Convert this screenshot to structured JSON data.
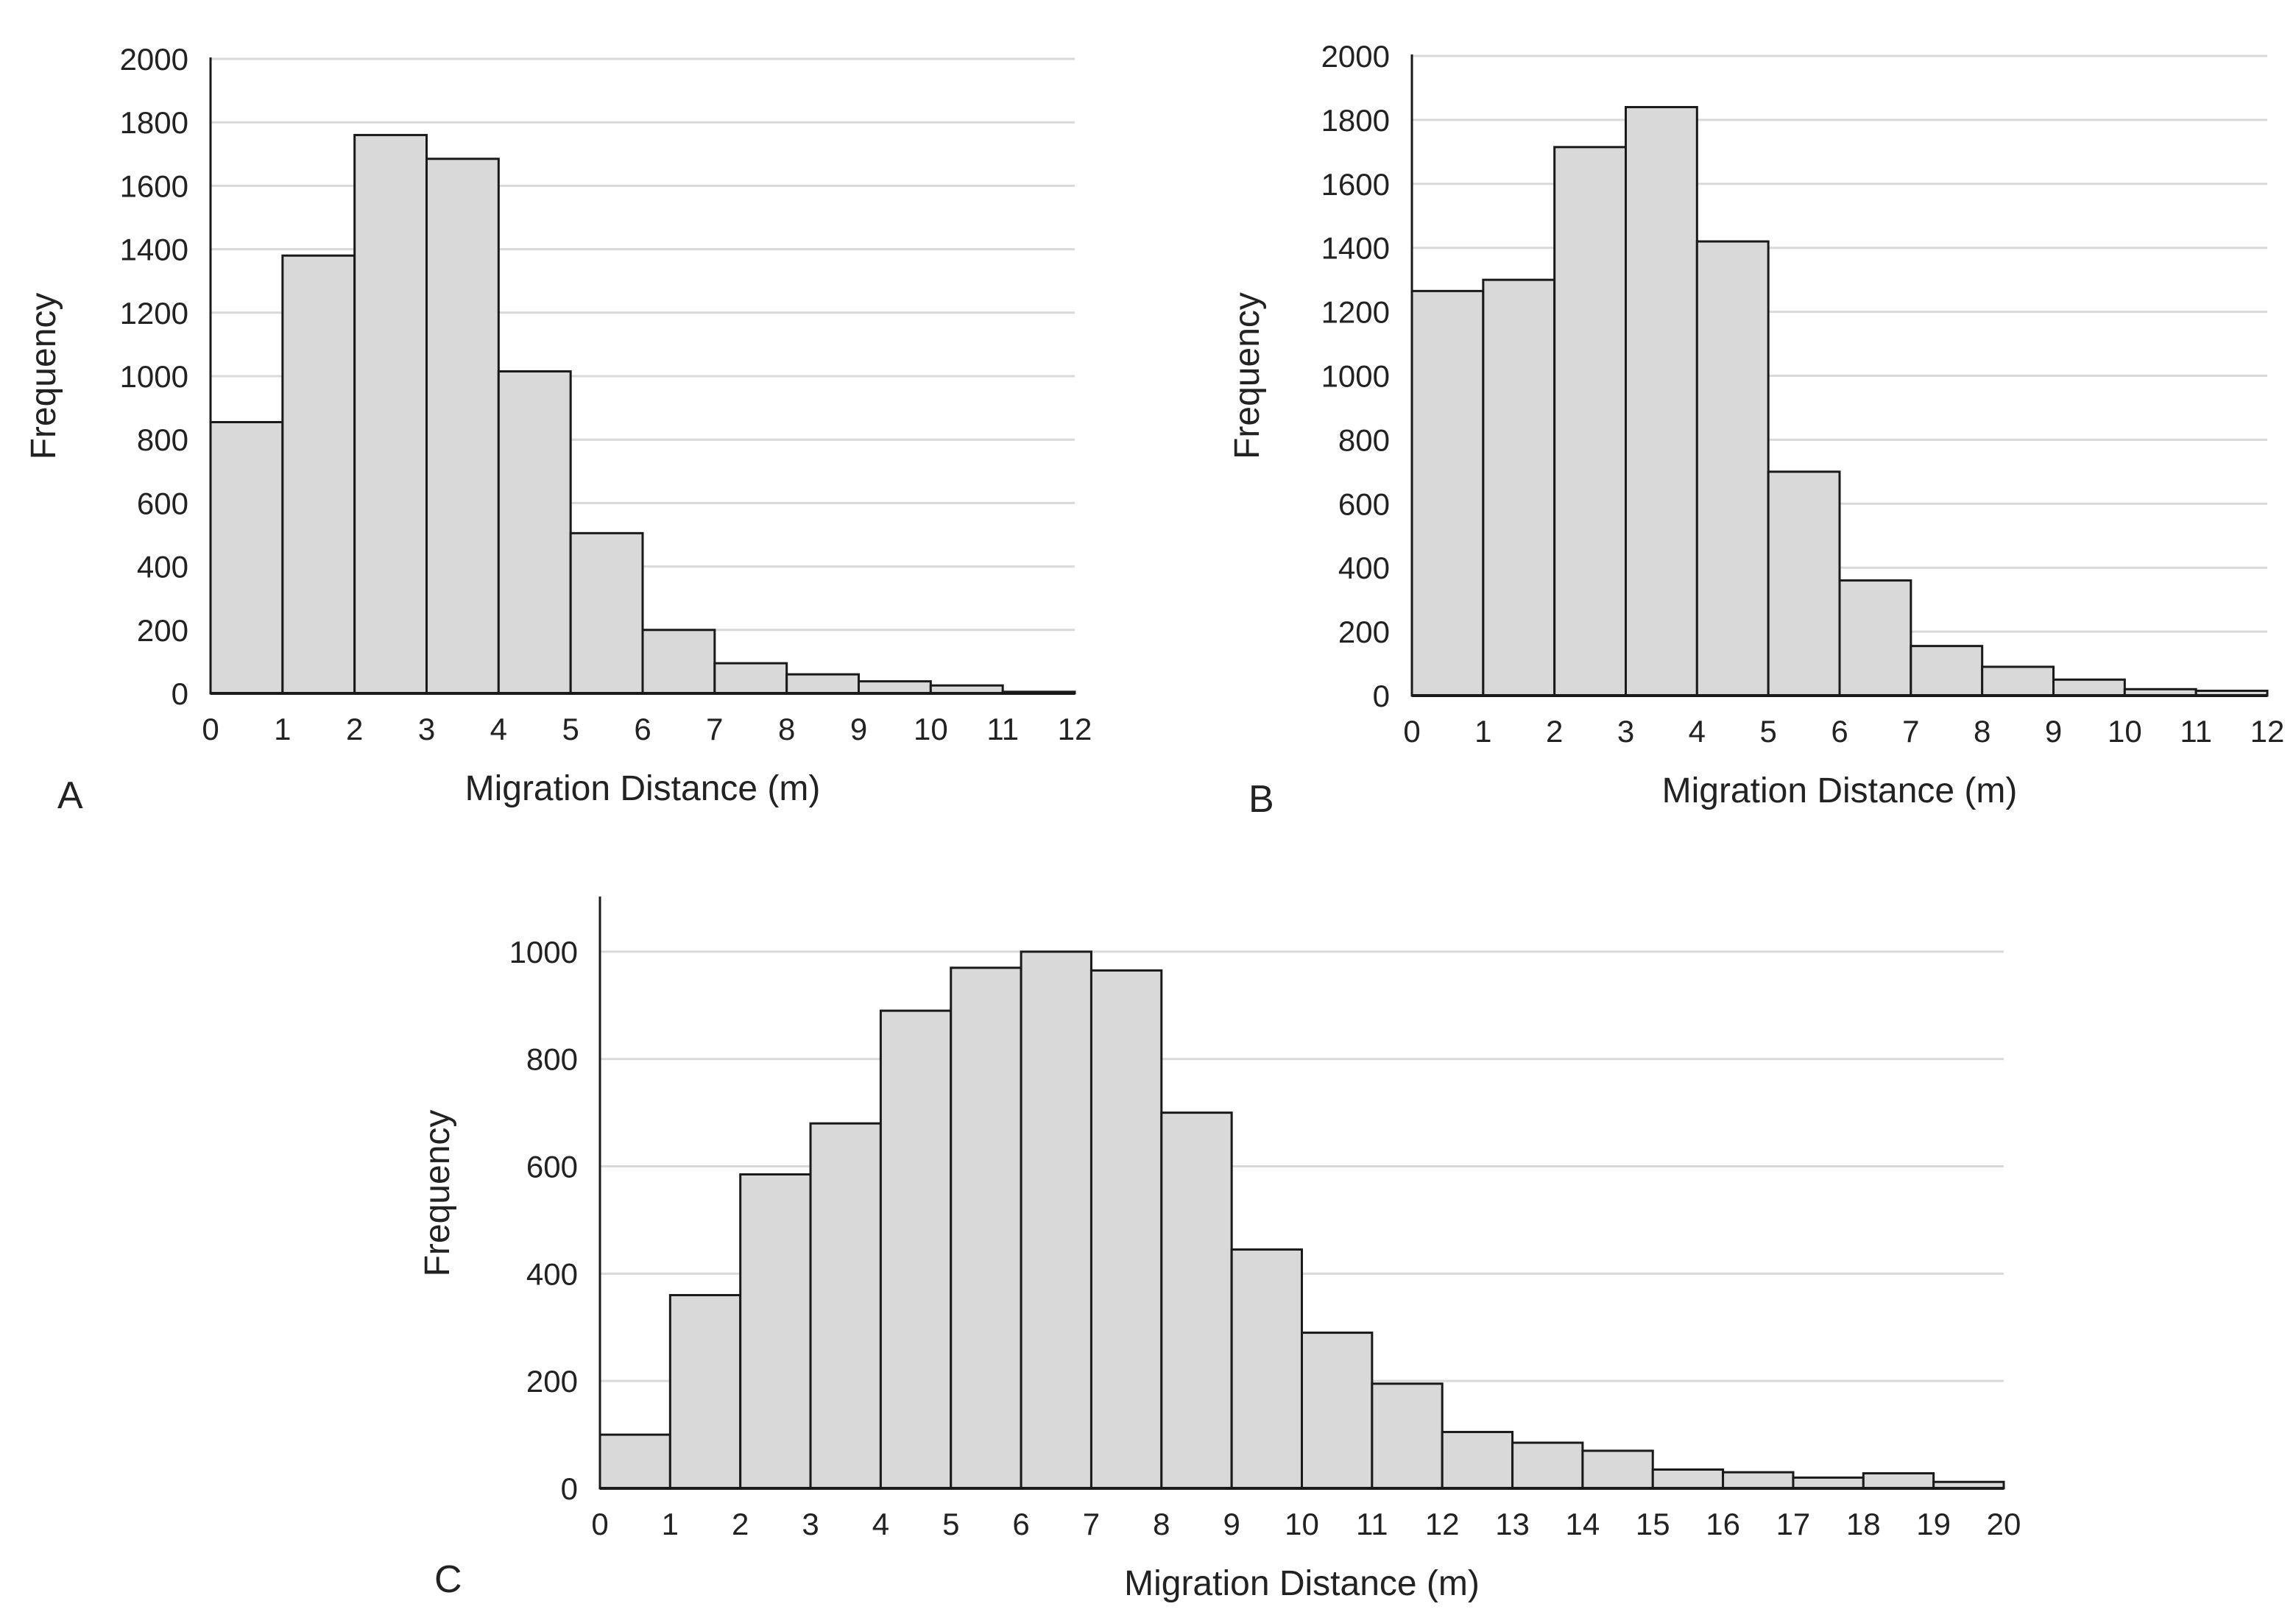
{
  "chart_data": [
    {
      "panel": "A",
      "type": "bar",
      "xlabel": "Migration Distance (m)",
      "ylabel": "Frequency",
      "ylim": [
        0,
        2000
      ],
      "yticks": [
        0,
        200,
        400,
        600,
        800,
        1000,
        1200,
        1400,
        1600,
        1800,
        2000
      ],
      "xticks": [
        "0",
        "1",
        "2",
        "3",
        "4",
        "5",
        "6",
        "7",
        "8",
        "9",
        "10",
        "11",
        "12"
      ],
      "values": [
        855,
        1380,
        1760,
        1685,
        1015,
        505,
        200,
        95,
        60,
        38,
        25,
        5
      ],
      "grid": true
    },
    {
      "panel": "B",
      "type": "bar",
      "xlabel": "Migration Distance (m)",
      "ylabel": "Frequency",
      "ylim": [
        0,
        2000
      ],
      "yticks": [
        0,
        200,
        400,
        600,
        800,
        1000,
        1200,
        1400,
        1600,
        1800,
        2000
      ],
      "xticks": [
        "0",
        "1",
        "2",
        "3",
        "4",
        "5",
        "6",
        "7",
        "8",
        "9",
        "10",
        "11",
        "12"
      ],
      "values": [
        1265,
        1300,
        1715,
        1840,
        1420,
        700,
        360,
        155,
        90,
        50,
        20,
        15
      ],
      "grid": true
    },
    {
      "panel": "C",
      "type": "bar",
      "xlabel": "Migration Distance (m)",
      "ylabel": "Frequency",
      "ylim": [
        0,
        1100
      ],
      "yticks": [
        0,
        200,
        400,
        600,
        800,
        1000
      ],
      "xticks": [
        "0",
        "1",
        "2",
        "3",
        "4",
        "5",
        "6",
        "7",
        "8",
        "9",
        "10",
        "11",
        "12",
        "13",
        "14",
        "15",
        "16",
        "17",
        "18",
        "19",
        "20"
      ],
      "values": [
        100,
        360,
        585,
        680,
        890,
        970,
        1000,
        965,
        700,
        445,
        290,
        195,
        105,
        85,
        70,
        35,
        30,
        20,
        28,
        12
      ],
      "grid": true
    }
  ]
}
